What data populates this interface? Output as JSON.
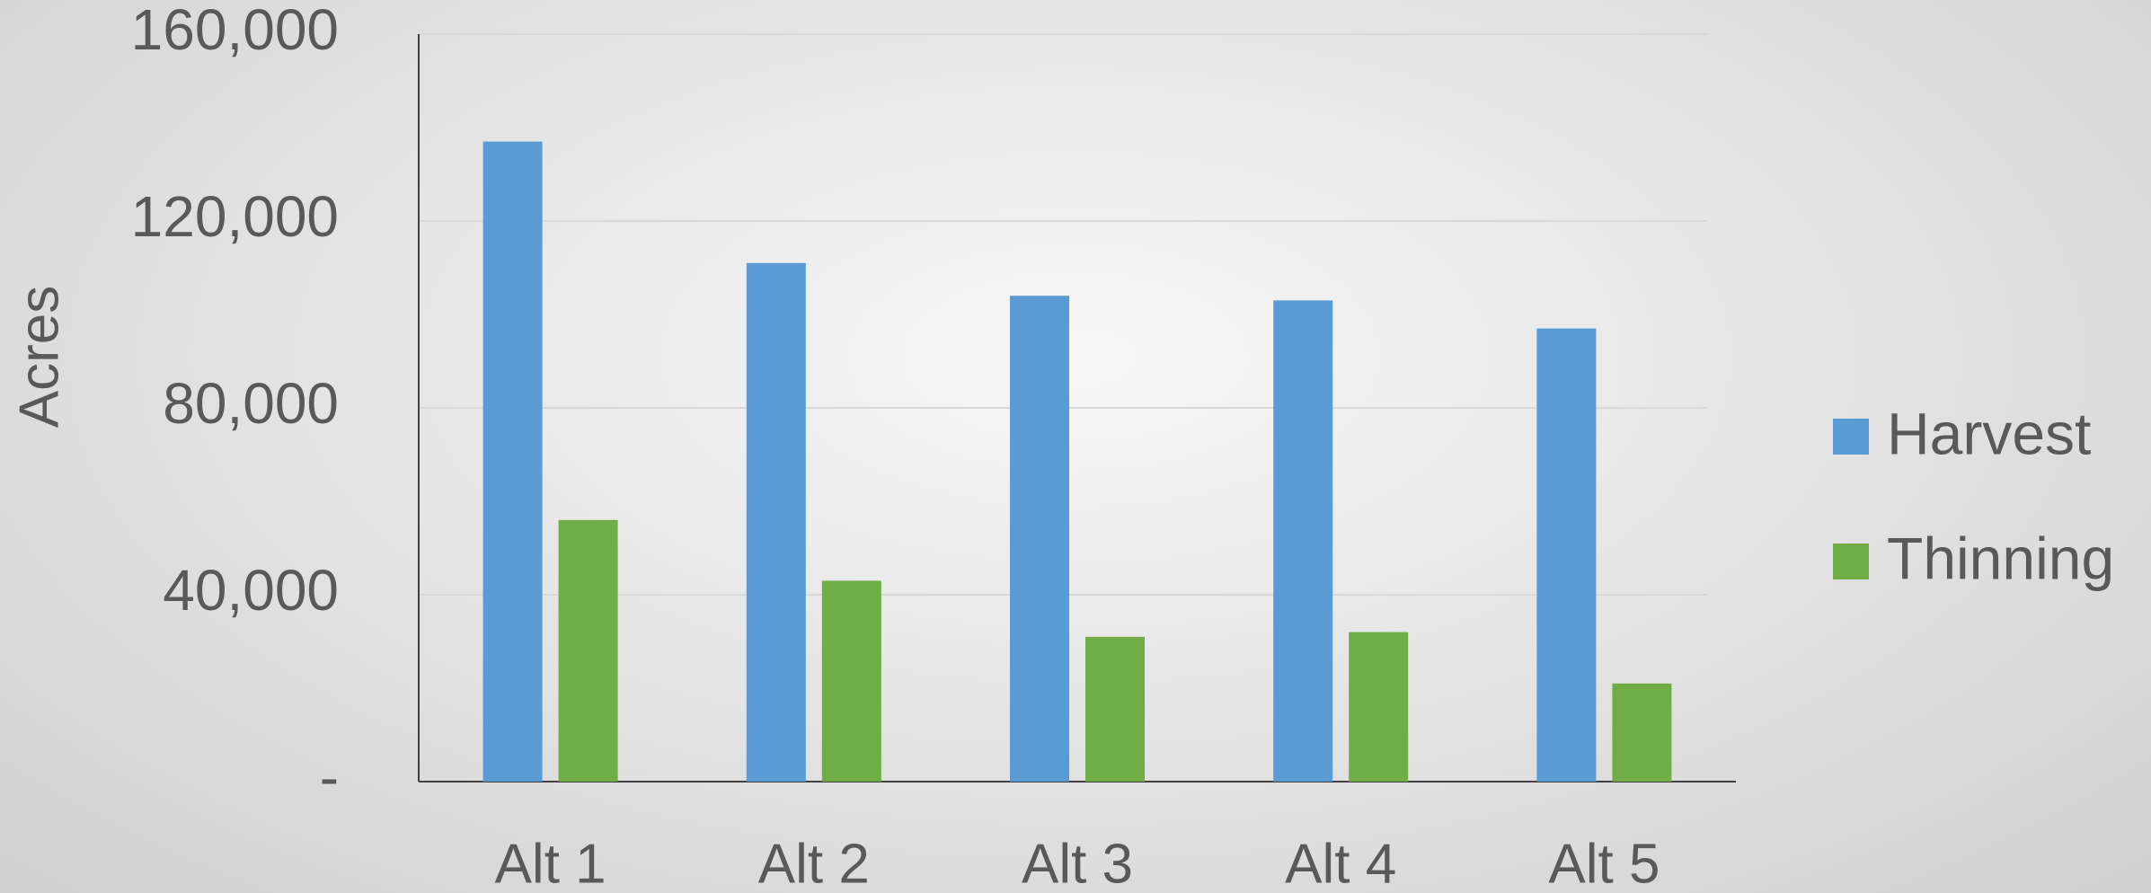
{
  "chart_data": {
    "type": "bar",
    "y_label": "Acres",
    "categories": [
      "Alt 1",
      "Alt 2",
      "Alt 3",
      "Alt 4",
      "Alt 5"
    ],
    "series": [
      {
        "name": "Harvest",
        "color": "#5b9bd5",
        "values": [
          137000,
          111000,
          104000,
          103000,
          97000
        ]
      },
      {
        "name": "Thinning",
        "color": "#70ad47",
        "values": [
          56000,
          43000,
          31000,
          32000,
          21000
        ]
      }
    ],
    "ylim": [
      0,
      160000
    ],
    "yticks": [
      {
        "value": 0,
        "label": "-"
      },
      {
        "value": 40000,
        "label": "40,000"
      },
      {
        "value": 80000,
        "label": "80,000"
      },
      {
        "value": 120000,
        "label": "120,000"
      },
      {
        "value": 160000,
        "label": "160,000"
      }
    ],
    "grid": true,
    "legend": "right"
  }
}
